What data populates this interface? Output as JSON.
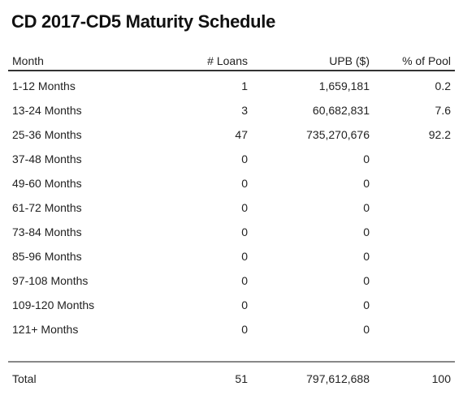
{
  "title": "CD 2017-CD5 Maturity Schedule",
  "columns": {
    "month": "Month",
    "loans": "# Loans",
    "upb": "UPB ($)",
    "pct": "% of Pool"
  },
  "rows": [
    {
      "month": "1-12 Months",
      "loans": "1",
      "upb": "1,659,181",
      "pct": "0.2"
    },
    {
      "month": "13-24 Months",
      "loans": "3",
      "upb": "60,682,831",
      "pct": "7.6"
    },
    {
      "month": "25-36 Months",
      "loans": "47",
      "upb": "735,270,676",
      "pct": "92.2"
    },
    {
      "month": "37-48 Months",
      "loans": "0",
      "upb": "0",
      "pct": ""
    },
    {
      "month": "49-60 Months",
      "loans": "0",
      "upb": "0",
      "pct": ""
    },
    {
      "month": "61-72 Months",
      "loans": "0",
      "upb": "0",
      "pct": ""
    },
    {
      "month": "73-84 Months",
      "loans": "0",
      "upb": "0",
      "pct": ""
    },
    {
      "month": "85-96 Months",
      "loans": "0",
      "upb": "0",
      "pct": ""
    },
    {
      "month": "97-108 Months",
      "loans": "0",
      "upb": "0",
      "pct": ""
    },
    {
      "month": "109-120 Months",
      "loans": "0",
      "upb": "0",
      "pct": ""
    },
    {
      "month": "121+ Months",
      "loans": "0",
      "upb": "0",
      "pct": ""
    }
  ],
  "total": {
    "label": "Total",
    "loans": "51",
    "upb": "797,612,688",
    "pct": "100"
  }
}
